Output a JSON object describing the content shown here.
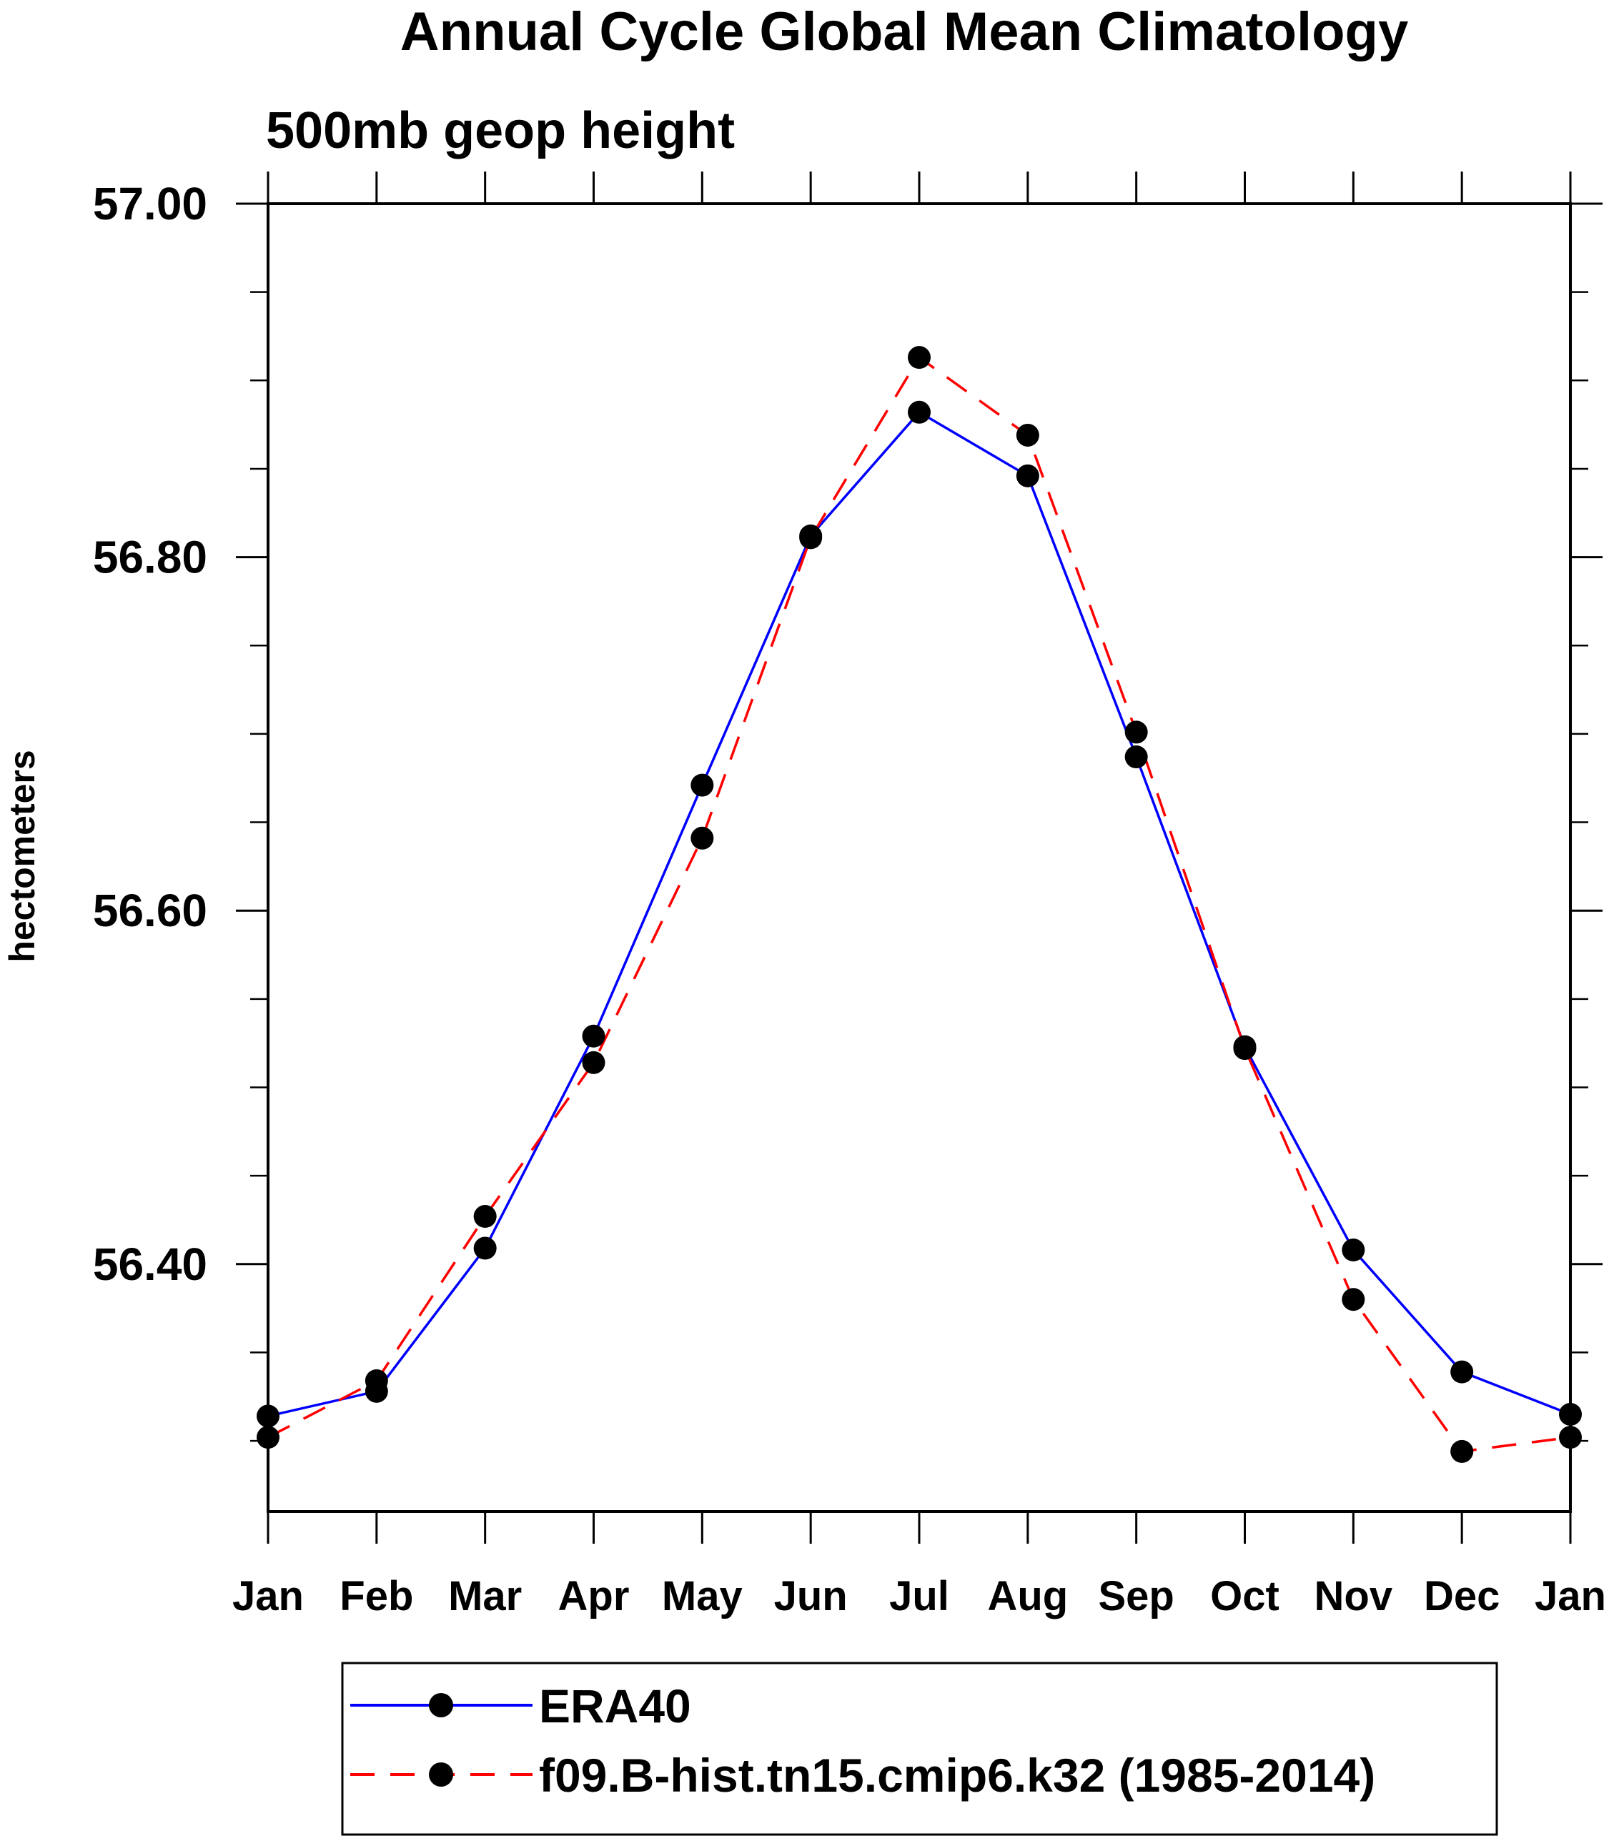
{
  "chart_data": {
    "type": "line",
    "title": "Annual Cycle Global Mean Climatology",
    "subtitle": "500mb geop height",
    "xlabel": "",
    "ylabel": "hectometers",
    "categories": [
      "Jan",
      "Feb",
      "Mar",
      "Apr",
      "May",
      "Jun",
      "Jul",
      "Aug",
      "Sep",
      "Oct",
      "Nov",
      "Dec",
      "Jan"
    ],
    "ylim": [
      56.26,
      57.0
    ],
    "yticks": [
      56.4,
      56.6,
      56.8,
      57.0
    ],
    "ytick_labels": [
      "56.40",
      "56.60",
      "56.80",
      "57.00"
    ],
    "y_minor_step": 0.05,
    "grid": false,
    "series": [
      {
        "name": "ERA40",
        "color": "#0000ff",
        "dash": "solid",
        "values": [
          56.314,
          56.328,
          56.409,
          56.529,
          56.671,
          56.812,
          56.882,
          56.846,
          56.687,
          56.523,
          56.408,
          56.339,
          56.315
        ]
      },
      {
        "name": "f09.B-hist.tn15.cmip6.k32 (1985-2014)",
        "color": "#ff0000",
        "dash": "dashed",
        "values": [
          56.302,
          56.334,
          56.427,
          56.514,
          56.641,
          56.811,
          56.913,
          56.869,
          56.701,
          56.522,
          56.38,
          56.294,
          56.302
        ]
      }
    ],
    "legend_position": "bottom"
  }
}
